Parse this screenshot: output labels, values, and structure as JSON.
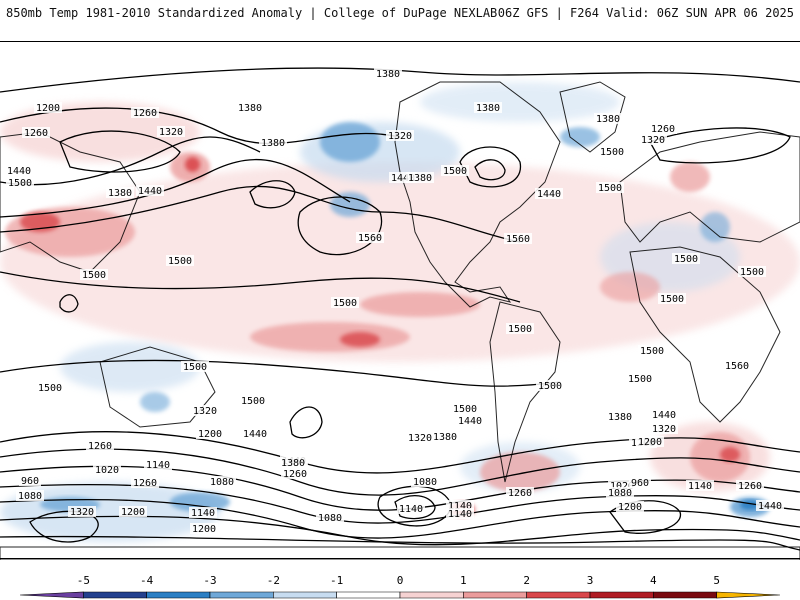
{
  "header": {
    "left": "850mb Temp 1981-2010 Standardized Anomaly | College of DuPage NEXLAB",
    "right": "06Z GFS | F264 Valid: 06Z SUN APR 06 2025"
  },
  "colors": {
    "neg5": "#6a3fa0",
    "neg4": "#23408e",
    "neg3": "#2b7fc4",
    "neg2": "#6fa8d8",
    "neg1": "#c7dcf0",
    "zero": "#ffffff",
    "pos1": "#f6d2d2",
    "pos2": "#eb9c9c",
    "pos3": "#d9474b",
    "pos4": "#b01c24",
    "pos5": "#7a0a10",
    "max": "#f7b500"
  },
  "colorbar": {
    "ticks": [
      "-5",
      "-4",
      "-3",
      "-2",
      "-1",
      "0",
      "1",
      "2",
      "3",
      "4",
      "5"
    ]
  },
  "contour_labels": [
    "1380",
    "1200",
    "1260",
    "1260",
    "1320",
    "1380",
    "1380",
    "1380",
    "1320",
    "1380",
    "1260",
    "1320",
    "1500",
    "1440",
    "1440",
    "1500",
    "1380",
    "1440",
    "1440",
    "1500",
    "1380",
    "1500",
    "1560",
    "1560",
    "1500",
    "1500",
    "1500",
    "1500",
    "1500",
    "1500",
    "1500",
    "1500",
    "1500",
    "1560",
    "1500",
    "1500",
    "1500",
    "1500",
    "1440",
    "1320",
    "1200",
    "1440",
    "1500",
    "1440",
    "1380",
    "1320",
    "1200",
    "1380",
    "1440",
    "1320",
    "1200",
    "1260",
    "1020",
    "1140",
    "1260",
    "1080",
    "1380",
    "1260",
    "1080",
    "1140",
    "960",
    "1080",
    "1020",
    "1140",
    "1260",
    "960",
    "1080",
    "1320",
    "1200",
    "1140",
    "1080",
    "1140",
    "1140",
    "1200",
    "1200",
    "1260",
    "1440"
  ]
}
